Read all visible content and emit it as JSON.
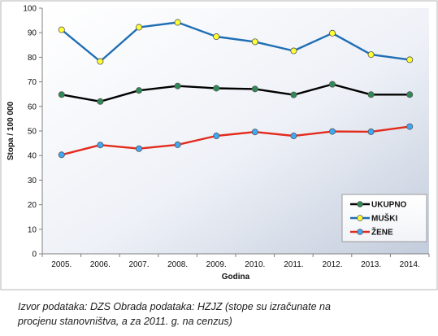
{
  "chart_data": {
    "type": "line",
    "categories": [
      "2005.",
      "2006.",
      "2007.",
      "2008.",
      "2009.",
      "2010.",
      "2011.",
      "2012.",
      "2013.",
      "2014."
    ],
    "xlabel": "Godina",
    "ylabel": "Stopa / 100 000",
    "ylim": [
      0,
      100
    ],
    "yticks": [
      0,
      10,
      20,
      30,
      40,
      50,
      60,
      70,
      80,
      90,
      100
    ],
    "grid": false,
    "legend_position": "bottom-right",
    "series": [
      {
        "name": "UKUPNO",
        "line_color": "#000000",
        "marker_color": "#2e8b57",
        "values": [
          64.8,
          62.0,
          66.5,
          68.3,
          67.4,
          67.1,
          64.7,
          69.0,
          64.8,
          64.8
        ]
      },
      {
        "name": "MUŠKI",
        "line_color": "#1f6eb4",
        "marker_color": "#ffff33",
        "values": [
          91.2,
          78.3,
          92.2,
          94.2,
          88.4,
          86.3,
          82.6,
          89.8,
          81.1,
          79.0
        ]
      },
      {
        "name": "ŽENE",
        "line_color": "#e32b1c",
        "marker_color": "#3fa9f5",
        "values": [
          40.3,
          44.3,
          42.8,
          44.4,
          48.0,
          49.6,
          48.0,
          49.8,
          49.7,
          51.8
        ]
      }
    ]
  },
  "caption": {
    "line1": "Izvor podataka: DZS Obrada podataka: HZJZ (stope su izračunate na",
    "line2": "procjenu stanovništva, a za 2011. g. na cenzus)"
  }
}
